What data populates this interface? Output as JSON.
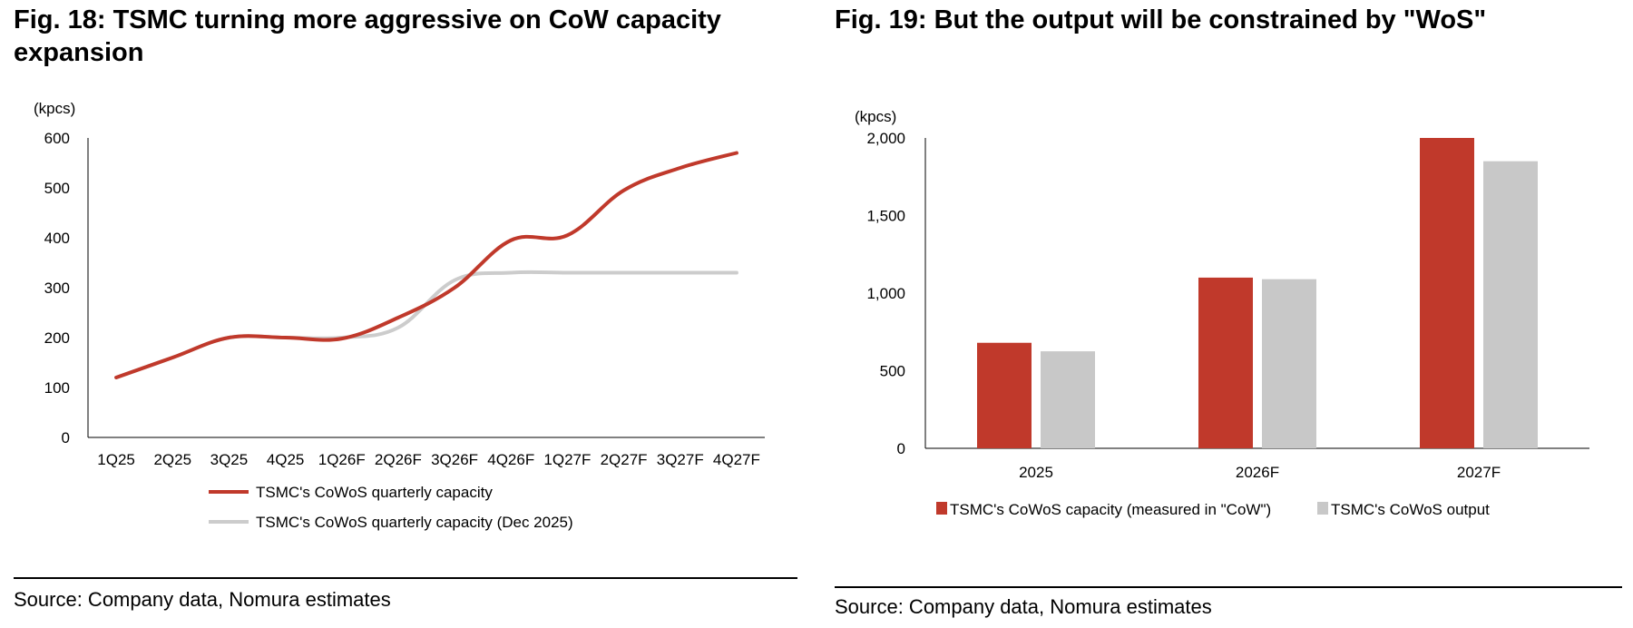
{
  "charts": [
    {
      "title": "Fig. 18: TSMC turning more aggressive on CoW capacity expansion",
      "source": "Source: Company data, Nomura estimates",
      "chart_data": {
        "type": "line",
        "title": "Fig. 18: TSMC turning more aggressive on CoW capacity expansion",
        "ylabel": "(kpcs)",
        "xlabel": "",
        "ylim": [
          0,
          600
        ],
        "yticks": [
          0,
          100,
          200,
          300,
          400,
          500,
          600
        ],
        "ytick_labels": [
          "0",
          "100",
          "200",
          "300",
          "400",
          "500",
          "600"
        ],
        "grid": false,
        "legend_position": "bottom",
        "categories": [
          "1Q25",
          "2Q25",
          "3Q25",
          "4Q25",
          "1Q26F",
          "2Q26F",
          "3Q26F",
          "4Q26F",
          "1Q27F",
          "2Q27F",
          "3Q27F",
          "4Q27F"
        ],
        "series": [
          {
            "name": "TSMC's CoWoS quarterly capacity",
            "color": "#c0392b",
            "values": [
              120,
              160,
              200,
              200,
              198,
              240,
              300,
              395,
              405,
              495,
              540,
              570
            ]
          },
          {
            "name": "TSMC's CoWoS quarterly capacity (Dec 2025)",
            "color": "#cccccc",
            "values": [
              120,
              160,
              200,
              200,
              200,
              220,
              315,
              330,
              330,
              330,
              330,
              330
            ]
          }
        ]
      }
    },
    {
      "title": "Fig. 19: But the output will be constrained by \"WoS\"",
      "source": "Source: Company data, Nomura estimates",
      "chart_data": {
        "type": "bar",
        "title": "Fig. 19: But the output will be constrained by \"WoS\"",
        "ylabel": "(kpcs)",
        "xlabel": "",
        "ylim": [
          0,
          2000
        ],
        "yticks": [
          0,
          500,
          1000,
          1500,
          2000
        ],
        "ytick_labels": [
          "0",
          "500",
          "1,000",
          "1,500",
          "2,000"
        ],
        "grid": false,
        "legend_position": "bottom",
        "categories": [
          "2025",
          "2026F",
          "2027F"
        ],
        "series": [
          {
            "name": "TSMC's CoWoS capacity (measured in \"CoW\")",
            "color": "#c0392b",
            "values": [
              680,
              1100,
              2000
            ]
          },
          {
            "name": "TSMC's CoWoS output",
            "color": "#c8c8c8",
            "values": [
              625,
              1090,
              1850
            ]
          }
        ]
      }
    }
  ]
}
